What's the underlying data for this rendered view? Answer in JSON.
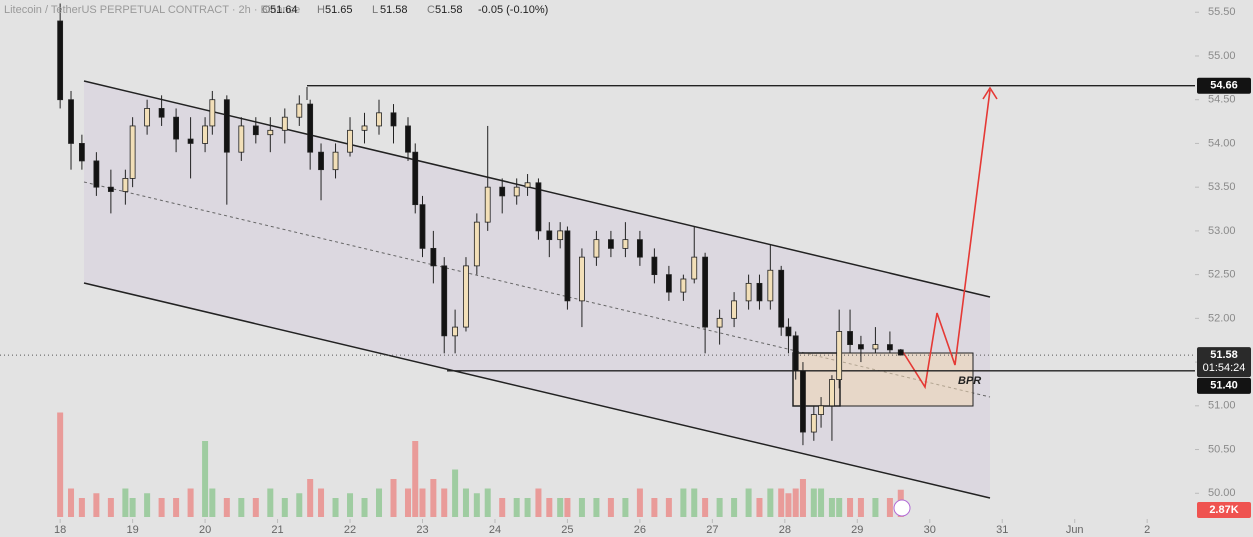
{
  "chart_data": {
    "type": "candlestick",
    "header": {
      "title": "Litecoin / TetherUS PERPETUAL CONTRACT · 2h · Binance",
      "fields": [
        {
          "label": "O",
          "value": "51.64"
        },
        {
          "label": "H",
          "value": "51.65"
        },
        {
          "label": "L",
          "value": "51.58"
        },
        {
          "label": "C",
          "value": "51.58"
        }
      ],
      "change": "-0.05 (-0.10%)"
    },
    "x": [
      18.0,
      18.15,
      18.3,
      18.5,
      18.7,
      18.9,
      19.0,
      19.2,
      19.4,
      19.6,
      19.8,
      20.0,
      20.1,
      20.3,
      20.5,
      20.7,
      20.9,
      21.1,
      21.3,
      21.45,
      21.6,
      21.8,
      22.0,
      22.2,
      22.4,
      22.6,
      22.8,
      22.9,
      23.0,
      23.15,
      23.3,
      23.45,
      23.6,
      23.75,
      23.9,
      24.1,
      24.3,
      24.45,
      24.6,
      24.75,
      24.9,
      25.0,
      25.2,
      25.4,
      25.6,
      25.8,
      26.0,
      26.2,
      26.4,
      26.6,
      26.75,
      26.9,
      27.1,
      27.3,
      27.5,
      27.65,
      27.8,
      27.95,
      28.05,
      28.15,
      28.25,
      28.4,
      28.5,
      28.65,
      28.75,
      28.9,
      29.05,
      29.25,
      29.45,
      29.6
    ],
    "ohlc": [
      [
        55.4,
        55.6,
        54.4,
        54.5
      ],
      [
        54.5,
        54.6,
        53.7,
        54.0
      ],
      [
        54.0,
        54.1,
        53.7,
        53.8
      ],
      [
        53.8,
        53.9,
        53.4,
        53.5
      ],
      [
        53.5,
        53.7,
        53.2,
        53.45
      ],
      [
        53.45,
        53.7,
        53.3,
        53.6
      ],
      [
        53.6,
        54.3,
        53.5,
        54.2
      ],
      [
        54.2,
        54.5,
        54.1,
        54.4
      ],
      [
        54.4,
        54.55,
        54.2,
        54.3
      ],
      [
        54.3,
        54.4,
        53.9,
        54.05
      ],
      [
        54.05,
        54.3,
        53.6,
        54.0
      ],
      [
        54.0,
        54.3,
        53.9,
        54.2
      ],
      [
        54.2,
        54.6,
        54.1,
        54.5
      ],
      [
        54.5,
        54.55,
        53.3,
        53.9
      ],
      [
        53.9,
        54.3,
        53.8,
        54.2
      ],
      [
        54.2,
        54.3,
        54.0,
        54.1
      ],
      [
        54.1,
        54.3,
        53.9,
        54.15
      ],
      [
        54.15,
        54.4,
        54.0,
        54.3
      ],
      [
        54.3,
        54.55,
        54.2,
        54.45
      ],
      [
        54.45,
        54.5,
        53.7,
        53.9
      ],
      [
        53.9,
        54.0,
        53.35,
        53.7
      ],
      [
        53.7,
        54.0,
        53.6,
        53.9
      ],
      [
        53.9,
        54.3,
        53.85,
        54.15
      ],
      [
        54.15,
        54.35,
        54.0,
        54.2
      ],
      [
        54.2,
        54.5,
        54.1,
        54.35
      ],
      [
        54.35,
        54.45,
        54.0,
        54.2
      ],
      [
        54.2,
        54.3,
        53.8,
        53.9
      ],
      [
        53.9,
        54.0,
        53.2,
        53.3
      ],
      [
        53.3,
        53.4,
        52.7,
        52.8
      ],
      [
        52.8,
        53.0,
        52.4,
        52.6
      ],
      [
        52.6,
        52.7,
        51.6,
        51.8
      ],
      [
        51.8,
        52.1,
        51.6,
        51.9
      ],
      [
        51.9,
        52.7,
        51.85,
        52.6
      ],
      [
        52.6,
        53.2,
        52.5,
        53.1
      ],
      [
        53.1,
        54.2,
        53.0,
        53.5
      ],
      [
        53.5,
        53.6,
        53.2,
        53.4
      ],
      [
        53.4,
        53.6,
        53.3,
        53.5
      ],
      [
        53.5,
        53.65,
        53.4,
        53.55
      ],
      [
        53.55,
        53.6,
        52.9,
        53.0
      ],
      [
        53.0,
        53.1,
        52.7,
        52.9
      ],
      [
        52.9,
        53.1,
        52.8,
        53.0
      ],
      [
        53.0,
        53.05,
        52.1,
        52.2
      ],
      [
        52.2,
        52.8,
        51.9,
        52.7
      ],
      [
        52.7,
        53.0,
        52.6,
        52.9
      ],
      [
        52.9,
        53.0,
        52.7,
        52.8
      ],
      [
        52.8,
        53.1,
        52.7,
        52.9
      ],
      [
        52.9,
        53.0,
        52.6,
        52.7
      ],
      [
        52.7,
        52.8,
        52.4,
        52.5
      ],
      [
        52.5,
        52.6,
        52.2,
        52.3
      ],
      [
        52.3,
        52.5,
        52.2,
        52.45
      ],
      [
        52.45,
        53.05,
        52.4,
        52.7
      ],
      [
        52.7,
        52.75,
        51.6,
        51.9
      ],
      [
        51.9,
        52.1,
        51.7,
        52.0
      ],
      [
        52.0,
        52.3,
        51.9,
        52.2
      ],
      [
        52.2,
        52.5,
        52.1,
        52.4
      ],
      [
        52.4,
        52.5,
        52.1,
        52.2
      ],
      [
        52.2,
        52.85,
        52.1,
        52.55
      ],
      [
        52.55,
        52.6,
        51.8,
        51.9
      ],
      [
        51.9,
        52.0,
        51.6,
        51.8
      ],
      [
        51.8,
        51.85,
        51.3,
        51.4
      ],
      [
        51.4,
        51.5,
        50.55,
        50.7
      ],
      [
        50.7,
        51.0,
        50.6,
        50.9
      ],
      [
        50.9,
        51.1,
        50.75,
        51.0
      ],
      [
        51.0,
        51.35,
        50.6,
        51.3
      ],
      [
        51.3,
        52.1,
        51.2,
        51.85
      ],
      [
        51.85,
        52.1,
        51.6,
        51.7
      ],
      [
        51.7,
        51.8,
        51.5,
        51.65
      ],
      [
        51.65,
        51.9,
        51.6,
        51.7
      ],
      [
        51.7,
        51.85,
        51.6,
        51.64
      ],
      [
        51.64,
        51.65,
        51.58,
        51.58
      ]
    ],
    "volume": [
      11,
      3,
      2,
      2.5,
      2,
      3,
      2,
      2.5,
      2,
      2,
      3,
      8,
      3,
      2,
      2,
      2,
      3,
      2,
      2.5,
      4,
      3,
      2,
      2.5,
      2,
      3,
      4,
      3,
      8,
      3,
      4,
      3,
      5,
      3,
      2.5,
      3,
      2,
      2,
      2,
      3,
      2,
      2,
      2,
      2,
      2,
      2,
      2,
      3,
      2,
      2,
      3,
      3,
      2,
      2,
      2,
      3,
      2,
      3,
      3,
      2.5,
      3,
      4,
      3,
      3,
      2,
      2,
      2,
      2,
      2,
      2,
      2.87
    ],
    "volume_label": "2.87K",
    "up_color": "#f2dfb8",
    "down_color": "#131313",
    "xlim": [
      17.17,
      33.66
    ],
    "xticks": [
      18,
      19,
      20,
      21,
      22,
      23,
      24,
      25,
      26,
      27,
      28,
      29,
      30,
      31,
      {
        "value": 32,
        "label": "Jun"
      },
      {
        "value": 33,
        "label": "2"
      }
    ],
    "ylim": [
      49.5,
      55.64
    ],
    "yticks": [
      {
        "value": 50,
        "label": "50.00"
      },
      {
        "value": 50.5,
        "label": "50.50"
      },
      {
        "value": 51,
        "label": "51.00"
      },
      {
        "value": 51.5,
        "label": "51.50"
      },
      {
        "value": 52,
        "label": "52.00"
      },
      {
        "value": 52.5,
        "label": "52.50"
      },
      {
        "value": 53,
        "label": "53.00"
      },
      {
        "value": 53.5,
        "label": "53.50"
      },
      {
        "value": 54,
        "label": "54.00"
      },
      {
        "value": 54.5,
        "label": "54.50"
      },
      {
        "value": 55,
        "label": "55.00"
      },
      {
        "value": 55.5,
        "label": "55.50"
      }
    ],
    "last_price": 51.58,
    "countdown": "01:54:24",
    "levels": [
      54.66,
      {
        "value": 51.4,
        "label": "51.40"
      }
    ],
    "annotation": "BPR"
  }
}
